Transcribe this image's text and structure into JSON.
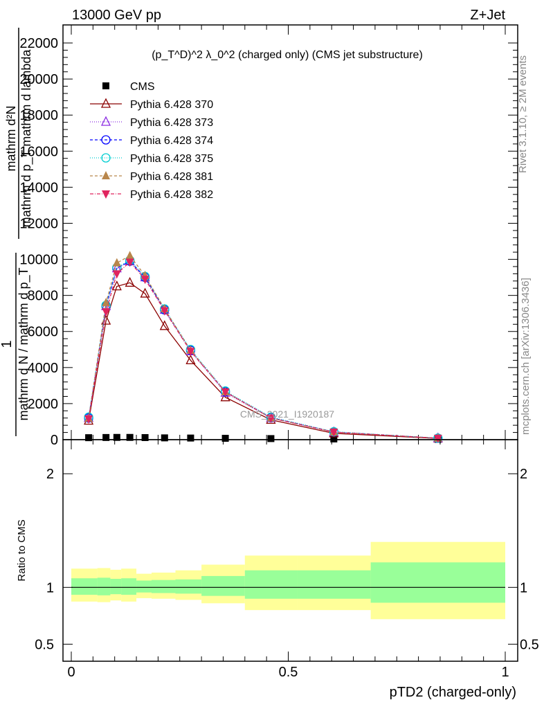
{
  "header": {
    "left": "13000 GeV pp",
    "right": "Z+Jet",
    "plot_title": "(p_T^D)^2 λ_0^2 (charged only) (CMS jet substructure)",
    "watermark": "CMS_2021_I1920187"
  },
  "side": {
    "rivet": "Rivet 3.1.10, ≥ 2M events",
    "mcplots": "mcplots.cern.ch [arXiv:1306.3436]"
  },
  "chart_data": [
    {
      "type": "line",
      "ylabel": "1 / mathrm d N / mathrm d p_T  mathrm d^2N / mathrm d p_T mathrm d lambda",
      "ylabel_parts": {
        "top": "mathrm d²N",
        "bottom": "mathrm d p_T mathrm d lambda",
        "one": "1",
        "denominator": "mathrm d N / mathrm d p_T",
        "lower": "mathrm d N / mathrm d p_T"
      },
      "ylim": [
        0,
        23000
      ],
      "xlim": [
        0,
        1
      ],
      "yticks": [
        "0",
        "2000",
        "4000",
        "6000",
        "8000",
        "10000",
        "12000",
        "14000",
        "16000",
        "18000",
        "20000",
        "22000"
      ],
      "x": [
        0.04,
        0.08,
        0.105,
        0.135,
        0.17,
        0.215,
        0.275,
        0.355,
        0.46,
        0.605,
        0.845
      ],
      "legend_position": "top-left",
      "series": [
        {
          "name": "CMS",
          "color": "#000000",
          "marker": "square",
          "dash": "none",
          "values": [
            110,
            120,
            125,
            125,
            115,
            100,
            90,
            75,
            60,
            40,
            20
          ]
        },
        {
          "name": "Pythia 6.428 370",
          "color": "#8b0000",
          "marker": "triangle-open",
          "dash": "none",
          "values": [
            1050,
            6600,
            8500,
            8700,
            8100,
            6300,
            4400,
            2350,
            1100,
            350,
            70
          ]
        },
        {
          "name": "Pythia 6.428 373",
          "color": "#8a2be2",
          "marker": "triangle-open",
          "dash": "1,2",
          "values": [
            1200,
            7400,
            9500,
            9900,
            9000,
            7200,
            4900,
            2600,
            1200,
            420,
            80
          ]
        },
        {
          "name": "Pythia 6.428 374",
          "color": "#0000ff",
          "marker": "circle-open",
          "dash": "4,3",
          "values": [
            1200,
            7400,
            9500,
            9900,
            9000,
            7200,
            4950,
            2650,
            1220,
            430,
            80
          ]
        },
        {
          "name": "Pythia 6.428 375",
          "color": "#00ced1",
          "marker": "circle-open",
          "dash": "1,2",
          "values": [
            1250,
            7450,
            9550,
            9950,
            9050,
            7250,
            5000,
            2700,
            1250,
            440,
            85
          ]
        },
        {
          "name": "Pythia 6.428 381",
          "color": "#b8864b",
          "marker": "triangle-filled",
          "dash": "4,3",
          "values": [
            1180,
            7600,
            9800,
            10200,
            9100,
            7250,
            4950,
            2650,
            1200,
            420,
            80
          ]
        },
        {
          "name": "Pythia 6.428 382",
          "color": "#e0245e",
          "marker": "triangle-down-filled",
          "dash": "5,2,1,2",
          "values": [
            1150,
            7100,
            9200,
            9850,
            8900,
            7150,
            4900,
            2650,
            1200,
            420,
            80
          ]
        }
      ]
    },
    {
      "type": "area",
      "ylabel": "Ratio to CMS",
      "xlabel": "pTD2 (charged-only)",
      "ylim": [
        0.35,
        2.3
      ],
      "xlim": [
        0,
        1
      ],
      "yticks": [
        "0.5",
        "1",
        "2"
      ],
      "xticks": [
        "0",
        "0.5",
        "1"
      ],
      "bins": [
        0,
        0.06,
        0.09,
        0.115,
        0.15,
        0.185,
        0.24,
        0.3,
        0.4,
        0.52,
        0.69,
        1.0
      ],
      "band_yellow_lo": [
        0.875,
        0.87,
        0.885,
        0.875,
        0.905,
        0.9,
        0.89,
        0.86,
        0.8,
        0.8,
        0.72
      ],
      "band_yellow_hi": [
        1.165,
        1.17,
        1.155,
        1.165,
        1.12,
        1.13,
        1.15,
        1.2,
        1.28,
        1.28,
        1.4
      ],
      "band_green_lo": [
        0.935,
        0.93,
        0.94,
        0.935,
        0.955,
        0.95,
        0.945,
        0.925,
        0.9,
        0.9,
        0.865
      ],
      "band_green_hi": [
        1.08,
        1.085,
        1.075,
        1.08,
        1.06,
        1.065,
        1.07,
        1.1,
        1.15,
        1.15,
        1.22
      ],
      "colors": {
        "yellow": "#ffff99",
        "green": "#99ff99"
      }
    }
  ]
}
